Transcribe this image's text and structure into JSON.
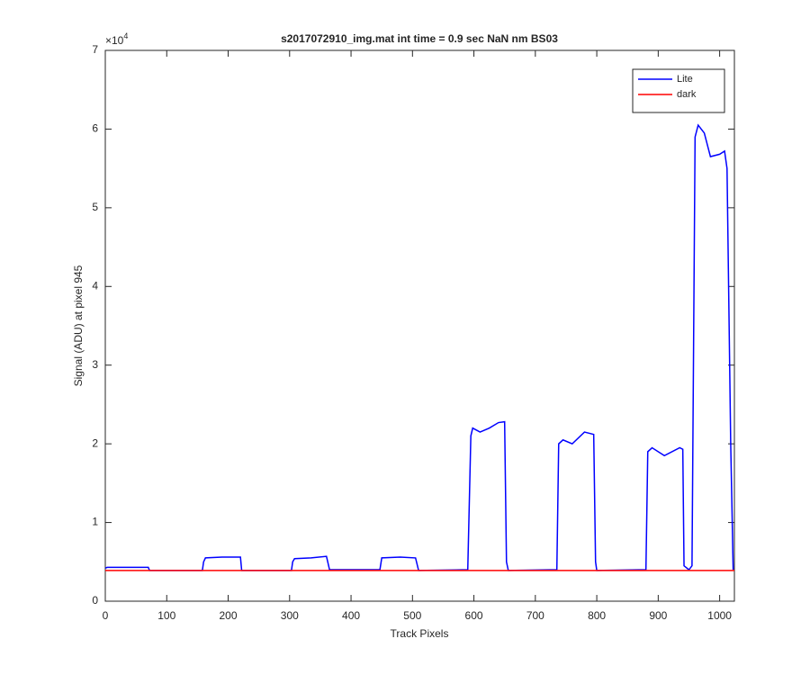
{
  "chart_data": {
    "type": "line",
    "title": "s2017072910_img.mat int time = 0.9 sec  NaN nm BS03",
    "x_label": "Track Pixels",
    "y_label": "Signal (ADU) at pixel 945",
    "y_multiplier": {
      "base": "×10",
      "exponent": "4"
    },
    "xlim": [
      0,
      1024
    ],
    "xticks": [
      0,
      100,
      200,
      300,
      400,
      500,
      600,
      700,
      800,
      900,
      1000
    ],
    "ylim": [
      0,
      7
    ],
    "yticks": [
      0,
      1,
      2,
      3,
      4,
      5,
      6,
      7
    ],
    "grid": false,
    "legend": "upper right",
    "series": [
      {
        "name": "Lite",
        "color": "#0000ff",
        "x": [
          0,
          3,
          20,
          50,
          70,
          72,
          158,
          160,
          163,
          190,
          220,
          222,
          303,
          305,
          308,
          335,
          360,
          365,
          447,
          450,
          480,
          505,
          510,
          590,
          595,
          598,
          610,
          625,
          640,
          650,
          653,
          656,
          735,
          738,
          745,
          760,
          780,
          795,
          798,
          800,
          880,
          883,
          890,
          910,
          935,
          940,
          942,
          950,
          955,
          960,
          965,
          975,
          985,
          1000,
          1008,
          1012,
          1018,
          1022
        ],
        "values": [
          0.42,
          0.43,
          0.43,
          0.43,
          0.43,
          0.39,
          0.39,
          0.5,
          0.55,
          0.56,
          0.56,
          0.39,
          0.39,
          0.5,
          0.54,
          0.55,
          0.57,
          0.4,
          0.4,
          0.55,
          0.56,
          0.55,
          0.39,
          0.4,
          2.1,
          2.2,
          2.15,
          2.2,
          2.27,
          2.28,
          0.5,
          0.39,
          0.4,
          2.0,
          2.05,
          2.0,
          2.15,
          2.12,
          0.5,
          0.39,
          0.4,
          1.9,
          1.95,
          1.85,
          1.95,
          1.93,
          0.45,
          0.4,
          0.45,
          5.9,
          6.05,
          5.95,
          5.65,
          5.68,
          5.72,
          5.5,
          2.0,
          0.4
        ]
      },
      {
        "name": "dark",
        "color": "#ff0000",
        "x": [
          0,
          1024
        ],
        "values": [
          0.39,
          0.39
        ]
      }
    ]
  }
}
